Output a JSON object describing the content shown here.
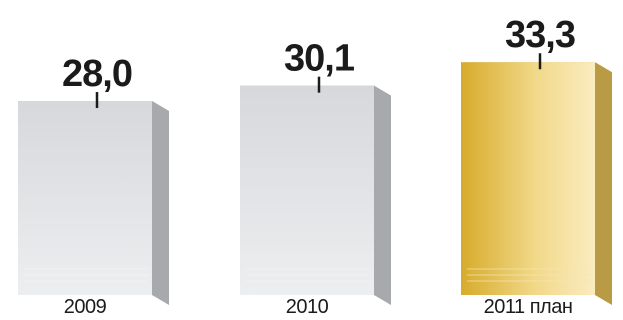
{
  "chart_data": {
    "type": "bar",
    "categories": [
      "2009",
      "2010",
      "2011 план"
    ],
    "values": [
      28.0,
      30.1,
      33.3
    ],
    "value_labels": [
      "28,0",
      "30,1",
      "33,3"
    ],
    "title": "",
    "xlabel": "",
    "ylabel": "",
    "grid": false,
    "legend": "none",
    "highlight_index": 2,
    "colors": {
      "bar_front_top": "#d7d8db",
      "bar_front_bottom": "#eceef0",
      "bar_top": "#c4c5c8",
      "bar_side": "#a8a9ac",
      "highlight_front_left": "#d7ab2b",
      "highlight_front_right": "#fbecc0",
      "highlight_top": "#d2b868",
      "highlight_side": "#b99a45",
      "text": "#1b1b1b"
    }
  }
}
